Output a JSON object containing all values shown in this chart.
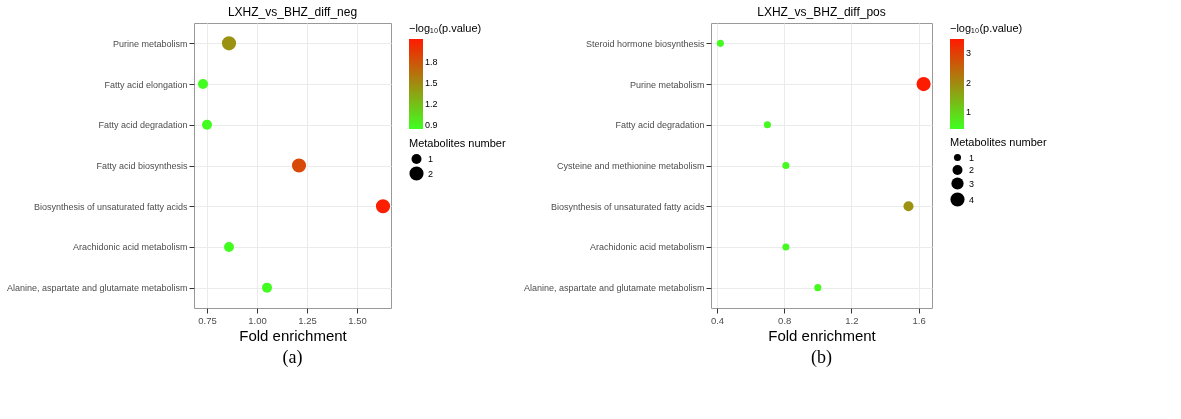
{
  "chart_data": [
    {
      "type": "bubble",
      "title": "LXHZ_vs_BHZ_diff_neg",
      "xlabel": "Fold enrichment",
      "orientation": "horizontal",
      "categories": [
        "Purine metabolism",
        "Fatty acid elongation",
        "Fatty acid degradation",
        "Fatty acid biosynthesis",
        "Biosynthesis of unsaturated fatty acids",
        "Arachidonic acid metabolism",
        "Alanine, aspartate and glutamate metabolism"
      ],
      "values": [
        0.86,
        0.73,
        0.75,
        1.21,
        1.63,
        0.86,
        1.05
      ],
      "sizes": [
        2,
        1,
        1,
        2,
        2,
        1,
        1
      ],
      "cvalues": [
        1.45,
        0.85,
        0.85,
        1.85,
        2.1,
        0.85,
        0.85
      ],
      "size_legend": [
        1,
        2
      ],
      "legend_title": "Metabolites number",
      "clabel": "−log₁₀(p.value)",
      "clim": [
        0.84,
        2.12
      ],
      "cticks": [
        0.9,
        1.2,
        1.5,
        1.8
      ],
      "xlim": [
        0.685,
        1.67
      ],
      "xticks": [
        {
          "value": 0.75,
          "label": "0.75"
        },
        {
          "value": 1.0,
          "label": "1.00"
        },
        {
          "value": 1.25,
          "label": "1.25"
        },
        {
          "value": 1.5,
          "label": "1.50"
        }
      ],
      "grid": true,
      "annotations": [
        "(a)"
      ]
    },
    {
      "type": "bubble",
      "title": "LXHZ_vs_BHZ_diff_pos",
      "xlabel": "Fold enrichment",
      "orientation": "horizontal",
      "categories": [
        "Steroid hormone biosynthesis",
        "Purine metabolism",
        "Fatty acid degradation",
        "Cysteine and methionine metabolism",
        "Biosynthesis of unsaturated fatty acids",
        "Arachidonic acid metabolism",
        "Alanine, aspartate and glutamate metabolism"
      ],
      "values": [
        0.42,
        1.63,
        0.7,
        0.81,
        1.54,
        0.81,
        1.0
      ],
      "sizes": [
        1,
        4,
        1,
        1,
        2,
        1,
        1
      ],
      "cvalues": [
        0.5,
        3.45,
        0.5,
        0.5,
        1.9,
        0.5,
        0.5
      ],
      "size_legend": [
        1,
        2,
        3,
        4
      ],
      "legend_title": "Metabolites number",
      "clabel": "−log₁₀(p.value)",
      "clim": [
        0.44,
        3.47
      ],
      "cticks": [
        1,
        2,
        3
      ],
      "xlim": [
        0.364,
        1.68
      ],
      "xticks": [
        0.4,
        0.8,
        1.2,
        1.6
      ],
      "grid": true,
      "annotations": [
        "(b)"
      ]
    }
  ]
}
